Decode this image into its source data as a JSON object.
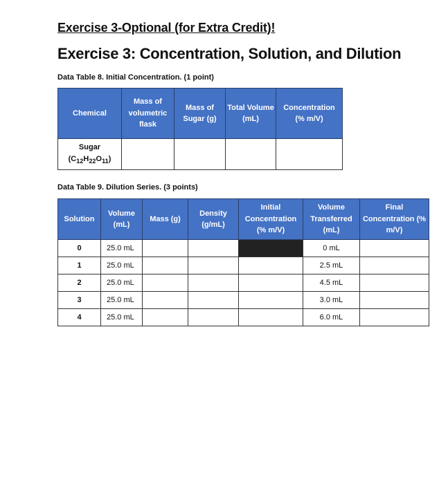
{
  "heading_optional": "Exercise 3-Optional (for Extra Credit)!",
  "heading_main": "Exercise 3: Concentration, Solution, and Dilution",
  "table8": {
    "caption": "Data Table 8. Initial Concentration. (1 point)",
    "headers": [
      "Chemical",
      "Mass of volumetric flask",
      "Mass of Sugar (g)",
      "Total Volume (mL)",
      "Concentration (% m/V)"
    ],
    "row": {
      "chemical": "Sugar",
      "formula_c": "C",
      "sub_c": "12",
      "formula_h": "H",
      "sub_h": "22",
      "formula_o": "O",
      "sub_o": "11"
    }
  },
  "table9": {
    "caption": "Data Table 9. Dilution Series. (3 points)",
    "headers": [
      "Solution",
      "Volume (mL)",
      "Mass (g)",
      "Density (g/mL)",
      "Initial Concentration (% m/V)",
      "Volume Transferred (mL)",
      "Final Concentration (% m/V)"
    ],
    "rows": [
      {
        "solution": "0",
        "volume": "25.0 mL",
        "transferred": "0 mL"
      },
      {
        "solution": "1",
        "volume": "25.0 mL",
        "transferred": "2.5 mL"
      },
      {
        "solution": "2",
        "volume": "25.0 mL",
        "transferred": "4.5 mL"
      },
      {
        "solution": "3",
        "volume": "25.0 mL",
        "transferred": "3.0 mL"
      },
      {
        "solution": "4",
        "volume": "25.0 mL",
        "transferred": "6.0 mL"
      }
    ]
  },
  "colors": {
    "header_bg": "#4472C4",
    "blocked_cell": "#222222"
  }
}
